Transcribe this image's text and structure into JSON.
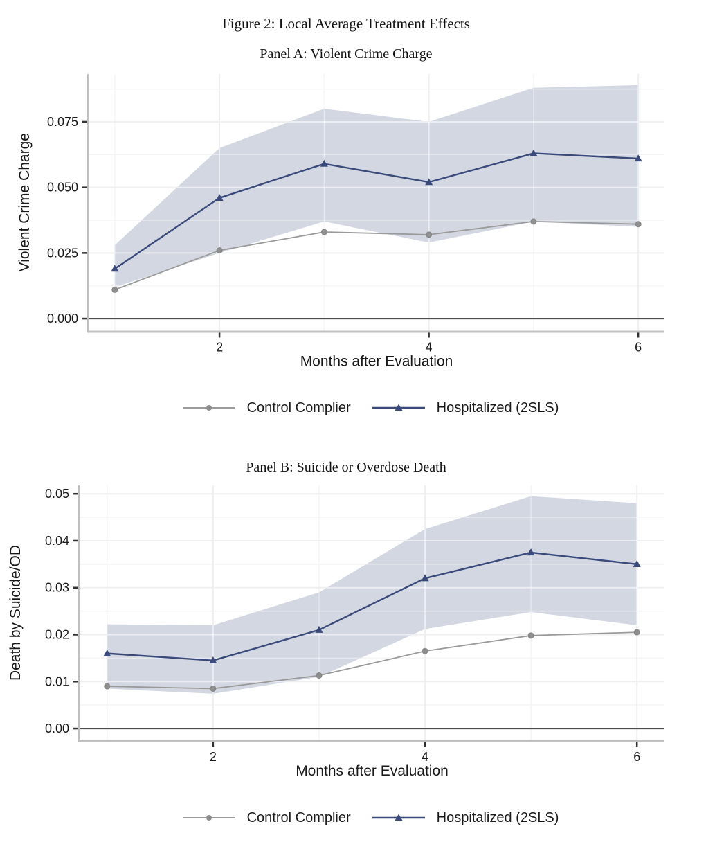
{
  "figure": {
    "title": "Figure 2: Local Average Treatment Effects"
  },
  "legend": {
    "items": [
      {
        "label": "Control Complier",
        "series": "control",
        "marker": "circle"
      },
      {
        "label": "Hospitalized (2SLS)",
        "series": "hospitalized",
        "marker": "triangle"
      }
    ]
  },
  "colors": {
    "control": "#9a9a9a",
    "control_marker": "#8e8e8e",
    "hospitalized": "#3a4a7a",
    "band": "#d3d7e2",
    "zero_line": "#4d4d4d",
    "axis_line": "#c0c0c0",
    "tick": "#333333",
    "grid_major": "#efefef",
    "grid_minor": "#f5f5f5",
    "grid_over_major": "rgba(255,255,255,0.55)",
    "grid_over_minor": "rgba(255,255,255,0.40)",
    "text": "#1a1a1a"
  },
  "chart_data": [
    {
      "type": "line",
      "panel_label": "Panel A: Violent Crime Charge",
      "xlabel": "Months after Evaluation",
      "ylabel": "Violent Crime Charge",
      "x": [
        1,
        2,
        3,
        4,
        5,
        6
      ],
      "xticks": [
        2,
        4,
        6
      ],
      "xtick_labels": [
        "2",
        "4",
        "6"
      ],
      "yticks": [
        0,
        0.025,
        0.05,
        0.075
      ],
      "ytick_labels": [
        "0.000",
        "0.025",
        "0.050",
        "0.075"
      ],
      "xlim": [
        0.75,
        6.25
      ],
      "ylim": [
        -0.0046,
        0.0932
      ],
      "zero_line": 0,
      "grid": true,
      "legend_position": "bottom",
      "series": [
        {
          "name": "Control Complier",
          "key": "control",
          "marker": "circle",
          "values": [
            0.011,
            0.026,
            0.033,
            0.032,
            0.037,
            0.036
          ]
        },
        {
          "name": "Hospitalized (2SLS)",
          "key": "hospitalized",
          "marker": "triangle",
          "values": [
            0.019,
            0.046,
            0.059,
            0.052,
            0.063,
            0.061
          ]
        }
      ],
      "band": {
        "for_series": "Hospitalized (2SLS)",
        "lower": [
          0.012,
          0.025,
          0.037,
          0.029,
          0.037,
          0.035
        ],
        "upper": [
          0.028,
          0.065,
          0.08,
          0.075,
          0.088,
          0.089
        ]
      }
    },
    {
      "type": "line",
      "panel_label": "Panel B: Suicide or Overdose Death",
      "xlabel": "Months after Evaluation",
      "ylabel": "Death by Suicide/OD",
      "x": [
        1,
        2,
        3,
        4,
        5,
        6
      ],
      "xticks": [
        2,
        4,
        6
      ],
      "xtick_labels": [
        "2",
        "4",
        "6"
      ],
      "yticks": [
        0,
        0.01,
        0.02,
        0.03,
        0.04,
        0.05
      ],
      "ytick_labels": [
        "0.00",
        "0.01",
        "0.02",
        "0.03",
        "0.04",
        "0.05"
      ],
      "xlim": [
        0.74,
        6.26
      ],
      "ylim": [
        -0.0025,
        0.0518
      ],
      "zero_line": 0,
      "grid": true,
      "legend_position": "bottom",
      "series": [
        {
          "name": "Control Complier",
          "key": "control",
          "marker": "circle",
          "values": [
            0.009,
            0.0085,
            0.0113,
            0.0165,
            0.0198,
            0.0205
          ]
        },
        {
          "name": "Hospitalized (2SLS)",
          "key": "hospitalized",
          "marker": "triangle",
          "values": [
            0.016,
            0.0145,
            0.021,
            0.032,
            0.0375,
            0.035
          ]
        }
      ],
      "band": {
        "for_series": "Hospitalized (2SLS)",
        "lower": [
          0.0085,
          0.0074,
          0.011,
          0.0212,
          0.0248,
          0.022
        ],
        "upper": [
          0.0222,
          0.022,
          0.029,
          0.0425,
          0.0495,
          0.048
        ]
      }
    }
  ]
}
